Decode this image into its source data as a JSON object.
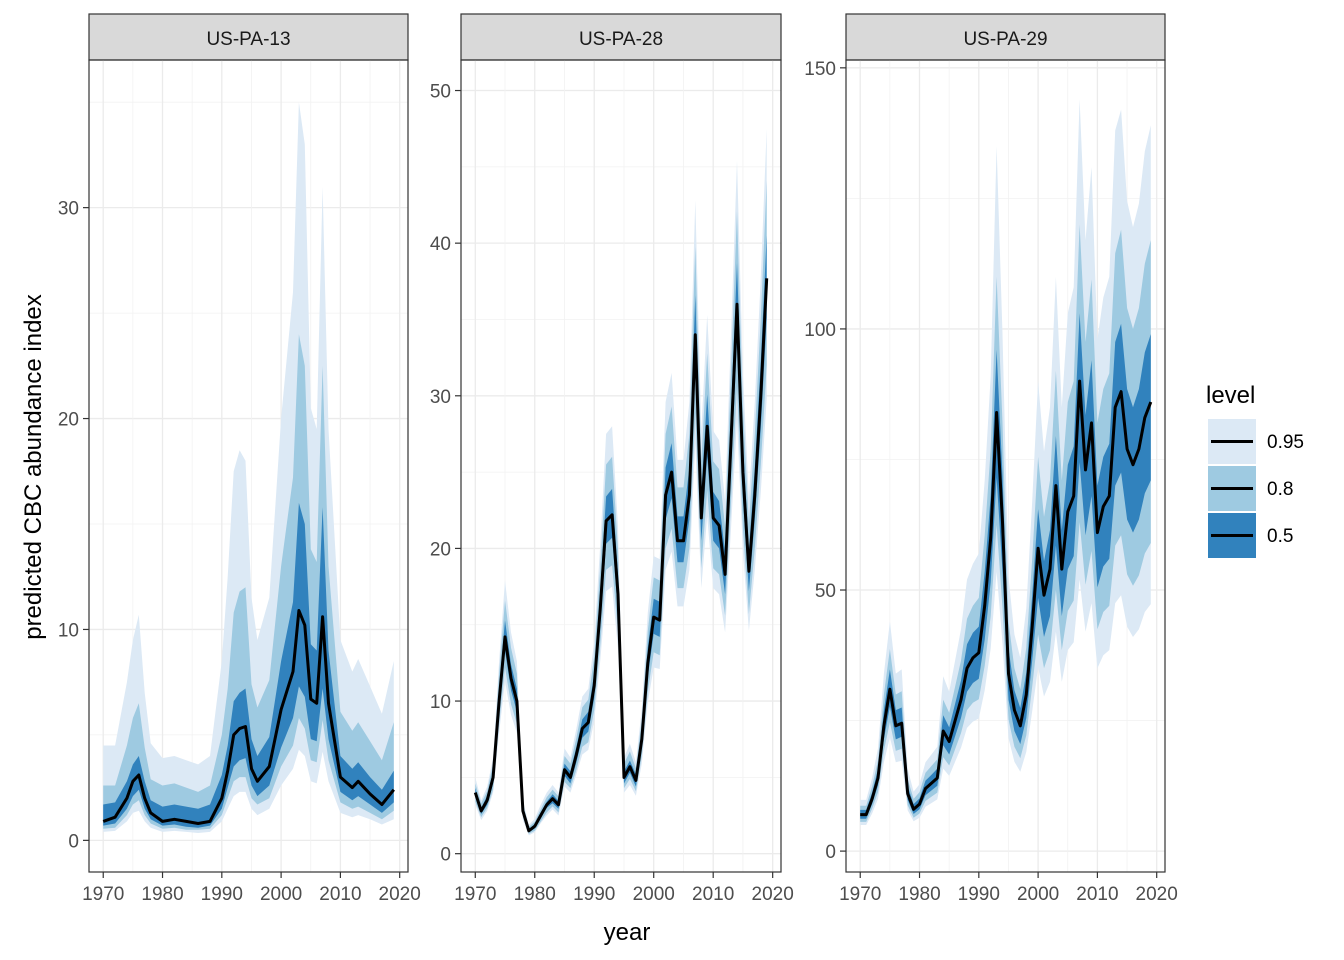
{
  "chart_data": {
    "type": "area",
    "xlabel": "year",
    "ylabel": "predicted CBC abundance index",
    "x_ticks": [
      1970,
      1980,
      1990,
      2000,
      2010,
      2020
    ],
    "legend": {
      "title": "level",
      "placement": "right",
      "entries": [
        "0.95",
        "0.8",
        "0.5"
      ]
    },
    "colors": {
      "band_95": "#dce9f5",
      "band_80": "#9ecae1",
      "band_50": "#3182bd",
      "line": "#000000",
      "strip_bg": "#d9d9d9",
      "grid": "#ebebeb"
    },
    "grid": true,
    "panels": [
      {
        "label": "US-PA-13",
        "ylim": [
          -1.5,
          37
        ],
        "y_ticks": [
          0,
          10,
          20,
          30
        ],
        "x": [
          1970,
          1972,
          1974,
          1975,
          1976,
          1977,
          1978,
          1980,
          1982,
          1984,
          1986,
          1988,
          1990,
          1991,
          1992,
          1993,
          1994,
          1995,
          1996,
          1998,
          2000,
          2002,
          2003,
          2004,
          2005,
          2006,
          2007,
          2008,
          2010,
          2012,
          2013,
          2015,
          2017,
          2019
        ],
        "median": [
          0.9,
          1.1,
          2.0,
          2.8,
          3.1,
          2.0,
          1.3,
          0.9,
          1.0,
          0.9,
          0.8,
          0.9,
          2.0,
          3.3,
          5.0,
          5.3,
          5.4,
          3.4,
          2.8,
          3.5,
          6.2,
          8.0,
          10.9,
          10.2,
          6.7,
          6.5,
          10.6,
          6.5,
          3.0,
          2.5,
          2.8,
          2.2,
          1.7,
          2.4
        ],
        "lo50": [
          0.7,
          0.8,
          1.5,
          2.1,
          2.4,
          1.5,
          1.0,
          0.7,
          0.75,
          0.65,
          0.6,
          0.7,
          1.5,
          2.5,
          3.5,
          3.8,
          3.9,
          2.6,
          2.1,
          2.6,
          4.4,
          5.8,
          7.3,
          6.8,
          4.8,
          4.7,
          7.2,
          4.8,
          2.3,
          1.9,
          2.1,
          1.7,
          1.3,
          1.8
        ],
        "hi50": [
          1.7,
          1.8,
          2.8,
          3.6,
          4.0,
          2.8,
          1.9,
          1.6,
          1.7,
          1.6,
          1.5,
          1.7,
          3.1,
          4.5,
          6.6,
          7.0,
          7.2,
          4.8,
          4.0,
          4.9,
          8.5,
          11.3,
          16.0,
          15.0,
          9.3,
          9.0,
          15.8,
          9.0,
          4.0,
          3.4,
          3.7,
          3.0,
          2.4,
          3.3
        ],
        "lo80": [
          0.55,
          0.6,
          1.2,
          1.7,
          1.9,
          1.2,
          0.8,
          0.55,
          0.6,
          0.5,
          0.5,
          0.55,
          1.2,
          2.0,
          2.8,
          3.0,
          3.0,
          2.0,
          1.7,
          2.0,
          3.5,
          4.5,
          5.8,
          5.3,
          3.8,
          3.7,
          5.7,
          3.8,
          1.8,
          1.5,
          1.6,
          1.3,
          1.0,
          1.4
        ],
        "hi80": [
          2.6,
          2.6,
          4.5,
          5.8,
          6.5,
          4.4,
          2.9,
          2.6,
          2.7,
          2.5,
          2.3,
          2.6,
          5.0,
          7.2,
          10.8,
          11.8,
          12.0,
          7.4,
          6.3,
          7.6,
          13.0,
          17.2,
          24.0,
          22.5,
          13.8,
          13.2,
          22.5,
          13.0,
          6.1,
          5.2,
          5.6,
          4.7,
          3.8,
          5.6
        ],
        "lo95": [
          0.4,
          0.45,
          0.9,
          1.3,
          1.4,
          0.9,
          0.6,
          0.4,
          0.45,
          0.4,
          0.35,
          0.4,
          0.9,
          1.5,
          2.1,
          2.3,
          2.3,
          1.5,
          1.2,
          1.5,
          2.6,
          3.4,
          4.3,
          4.0,
          2.8,
          2.7,
          4.2,
          2.8,
          1.3,
          1.1,
          1.2,
          1.0,
          0.75,
          1.0
        ],
        "hi95": [
          4.5,
          4.5,
          7.5,
          9.5,
          10.7,
          7.0,
          4.6,
          3.9,
          4.0,
          3.8,
          3.6,
          4.0,
          8.5,
          12.5,
          17.5,
          18.5,
          18.0,
          11.5,
          9.5,
          11.5,
          20.0,
          26.0,
          35.0,
          33.0,
          20.5,
          19.5,
          31.0,
          19.5,
          9.5,
          8.0,
          8.6,
          7.3,
          6.0,
          8.5
        ]
      },
      {
        "label": "US-PA-28",
        "ylim": [
          -1.2,
          52
        ],
        "y_ticks": [
          0,
          10,
          20,
          30,
          40,
          50
        ],
        "x": [
          1970,
          1971,
          1972,
          1973,
          1974,
          1975,
          1976,
          1977,
          1978,
          1979,
          1980,
          1981,
          1982,
          1983,
          1984,
          1985,
          1986,
          1987,
          1988,
          1989,
          1990,
          1991,
          1992,
          1993,
          1994,
          1995,
          1996,
          1997,
          1998,
          1999,
          2000,
          2001,
          2002,
          2003,
          2004,
          2005,
          2006,
          2007,
          2008,
          2009,
          2010,
          2011,
          2012,
          2013,
          2014,
          2015,
          2016,
          2017,
          2018,
          2019
        ],
        "median": [
          4.0,
          2.8,
          3.5,
          5.0,
          10.0,
          14.2,
          11.5,
          10.0,
          2.8,
          1.5,
          1.8,
          2.5,
          3.2,
          3.6,
          3.2,
          5.5,
          5.0,
          6.5,
          8.2,
          8.6,
          11.0,
          16.0,
          21.8,
          22.2,
          17.0,
          5.0,
          5.7,
          4.8,
          7.5,
          12.5,
          15.5,
          15.3,
          23.5,
          25.0,
          20.5,
          20.5,
          23.5,
          34.0,
          22.0,
          28.0,
          22.0,
          21.5,
          18.3,
          27.0,
          36.0,
          25.0,
          18.5,
          23.5,
          30.0,
          37.7
        ],
        "lo50": [
          3.7,
          2.6,
          3.2,
          4.6,
          9.3,
          13.3,
          10.7,
          9.3,
          2.6,
          1.4,
          1.65,
          2.3,
          3.0,
          3.3,
          2.95,
          5.1,
          4.6,
          6.0,
          7.6,
          8.0,
          10.2,
          14.9,
          20.3,
          20.7,
          15.8,
          4.6,
          5.3,
          4.4,
          7.0,
          11.6,
          14.4,
          14.2,
          21.9,
          23.3,
          19.1,
          19.1,
          21.9,
          31.6,
          20.5,
          26.0,
          20.5,
          20.0,
          17.0,
          25.1,
          33.5,
          23.3,
          17.2,
          21.9,
          27.9,
          35.1
        ],
        "hi50": [
          4.3,
          3.0,
          3.8,
          5.4,
          10.8,
          15.3,
          12.4,
          10.8,
          3.0,
          1.6,
          1.95,
          2.7,
          3.4,
          3.9,
          3.45,
          5.9,
          5.4,
          7.0,
          8.8,
          9.3,
          11.8,
          17.2,
          23.4,
          23.9,
          18.3,
          5.4,
          6.1,
          5.2,
          8.1,
          13.5,
          16.7,
          16.5,
          25.3,
          26.9,
          22.1,
          22.1,
          25.3,
          36.6,
          23.7,
          30.1,
          23.7,
          23.1,
          19.7,
          29.0,
          38.7,
          26.9,
          19.9,
          25.3,
          32.3,
          40.5
        ],
        "lo80": [
          3.4,
          2.4,
          3.0,
          4.2,
          8.5,
          12.2,
          9.8,
          8.5,
          2.4,
          1.3,
          1.5,
          2.1,
          2.7,
          3.1,
          2.7,
          4.7,
          4.3,
          5.5,
          7.0,
          7.3,
          9.4,
          13.6,
          18.6,
          18.9,
          14.5,
          4.3,
          4.9,
          4.1,
          6.4,
          10.6,
          13.2,
          13.0,
          20.0,
          21.3,
          17.4,
          17.4,
          20.0,
          28.9,
          18.7,
          23.8,
          18.7,
          18.3,
          15.6,
          23.0,
          30.6,
          21.3,
          15.7,
          20.0,
          25.5,
          32.0
        ],
        "hi80": [
          4.6,
          3.3,
          4.1,
          5.9,
          11.8,
          16.6,
          13.5,
          11.8,
          3.3,
          1.75,
          2.1,
          2.9,
          3.7,
          4.2,
          3.75,
          6.4,
          5.9,
          7.6,
          9.6,
          10.1,
          12.9,
          18.7,
          25.5,
          26.0,
          19.9,
          5.9,
          6.7,
          5.6,
          8.8,
          14.6,
          18.1,
          17.9,
          27.5,
          29.3,
          24.0,
          24.0,
          27.5,
          39.8,
          25.7,
          32.8,
          25.7,
          25.2,
          21.4,
          31.6,
          42.1,
          29.3,
          21.6,
          27.5,
          35.1,
          44.1
        ],
        "lo95": [
          3.2,
          2.2,
          2.8,
          4.0,
          7.9,
          11.3,
          9.1,
          7.9,
          2.2,
          1.2,
          1.4,
          2.0,
          2.5,
          2.9,
          2.5,
          4.4,
          4.0,
          5.2,
          6.5,
          6.8,
          8.7,
          12.6,
          17.2,
          17.5,
          13.4,
          4.0,
          4.5,
          3.8,
          5.9,
          9.9,
          12.2,
          12.1,
          18.6,
          19.8,
          16.2,
          16.2,
          18.6,
          26.9,
          17.4,
          22.1,
          17.4,
          17.0,
          14.5,
          21.3,
          28.4,
          19.8,
          14.6,
          18.6,
          23.7,
          29.8
        ],
        "hi95": [
          5.0,
          3.5,
          4.4,
          6.3,
          12.6,
          17.9,
          14.5,
          12.6,
          3.5,
          1.9,
          2.3,
          3.2,
          4.0,
          4.5,
          4.0,
          6.9,
          6.3,
          8.2,
          10.3,
          10.8,
          13.9,
          20.2,
          27.5,
          28.0,
          21.4,
          6.3,
          7.2,
          6.0,
          9.5,
          15.8,
          19.5,
          19.3,
          29.6,
          31.5,
          25.8,
          25.8,
          29.6,
          42.8,
          27.7,
          35.3,
          27.7,
          27.1,
          23.1,
          34.0,
          45.4,
          31.5,
          23.3,
          29.6,
          37.8,
          47.5
        ]
      },
      {
        "label": "US-PA-29",
        "ylim": [
          -4,
          151.5
        ],
        "y_ticks": [
          0,
          50,
          100,
          150
        ],
        "x": [
          1970,
          1971,
          1972,
          1973,
          1974,
          1975,
          1976,
          1977,
          1978,
          1979,
          1980,
          1981,
          1982,
          1983,
          1984,
          1985,
          1986,
          1987,
          1988,
          1989,
          1990,
          1991,
          1992,
          1993,
          1994,
          1995,
          1996,
          1997,
          1998,
          1999,
          2000,
          2001,
          2002,
          2003,
          2004,
          2005,
          2006,
          2007,
          2008,
          2009,
          2010,
          2011,
          2012,
          2013,
          2014,
          2015,
          2016,
          2017,
          2018,
          2019
        ],
        "median": [
          7,
          7,
          10,
          14,
          24,
          31,
          24,
          24.5,
          11,
          8,
          9,
          12,
          13,
          14,
          23,
          21,
          25,
          29,
          35,
          37,
          38,
          47,
          60,
          84,
          63,
          34,
          27,
          24,
          30,
          43,
          58,
          49,
          54,
          70,
          54,
          65,
          68,
          90,
          73,
          82,
          61,
          66,
          68,
          85,
          88,
          77,
          74,
          77,
          83,
          86
        ],
        "lo50": [
          6.2,
          6.2,
          9.0,
          12.6,
          21.4,
          27.7,
          21.4,
          21.9,
          9.8,
          7.1,
          8.0,
          10.7,
          11.6,
          12.5,
          20.3,
          18.5,
          22.0,
          25.5,
          30.5,
          32.2,
          33.0,
          40.5,
          51.5,
          71.5,
          53.5,
          29.0,
          23.0,
          20.5,
          25.5,
          36.5,
          48.5,
          41.0,
          45.0,
          58.5,
          45.0,
          54.0,
          56.5,
          74.5,
          60.5,
          68.0,
          50.5,
          54.5,
          56.0,
          70.0,
          72.5,
          63.5,
          61.0,
          63.5,
          68.5,
          71.0
        ],
        "hi50": [
          7.9,
          7.9,
          11.2,
          15.7,
          27.0,
          34.8,
          27.0,
          27.5,
          12.4,
          9.0,
          10.1,
          13.5,
          14.6,
          15.8,
          26.0,
          23.7,
          28.2,
          32.7,
          39.6,
          41.8,
          43.0,
          53.5,
          68.0,
          96.0,
          72.0,
          38.8,
          30.8,
          27.4,
          34.2,
          49.0,
          65.5,
          55.5,
          61.5,
          79.5,
          61.5,
          74.0,
          77.5,
          103.0,
          83.5,
          94.0,
          70.0,
          75.5,
          78.0,
          97.5,
          101.0,
          88.5,
          85.0,
          88.5,
          95.5,
          99.0
        ],
        "lo80": [
          5.6,
          5.6,
          8.1,
          11.3,
          19.2,
          24.7,
          19.2,
          19.6,
          8.8,
          6.4,
          7.2,
          9.6,
          10.4,
          11.2,
          18.0,
          16.4,
          19.5,
          22.6,
          27.0,
          28.4,
          29.1,
          35.5,
          45.0,
          62.5,
          46.5,
          25.2,
          20.0,
          17.8,
          22.2,
          31.5,
          41.5,
          35.0,
          38.5,
          50.0,
          38.5,
          46.0,
          48.0,
          63.0,
          51.0,
          57.5,
          42.5,
          45.8,
          47.0,
          58.5,
          60.5,
          53.0,
          50.8,
          52.8,
          57.0,
          59.0
        ],
        "hi80": [
          8.7,
          8.7,
          12.4,
          17.4,
          30.0,
          38.7,
          30.0,
          30.6,
          13.8,
          10.0,
          11.3,
          15.0,
          16.3,
          17.6,
          29.0,
          26.5,
          31.5,
          36.5,
          44.5,
          47.0,
          48.5,
          60.5,
          77.0,
          110.0,
          82.0,
          44.0,
          35.0,
          31.0,
          39.0,
          56.0,
          75.5,
          64.0,
          71.0,
          92.0,
          71.0,
          86.0,
          90.0,
          120.0,
          97.5,
          109.5,
          82.0,
          88.5,
          91.5,
          114.5,
          119.0,
          104.0,
          100.0,
          104.0,
          112.5,
          117.0
        ],
        "lo95": [
          5.0,
          5.0,
          7.2,
          10.0,
          17.0,
          21.8,
          17.0,
          17.3,
          7.8,
          5.7,
          6.4,
          8.5,
          9.2,
          9.9,
          15.8,
          14.4,
          17.1,
          19.8,
          23.6,
          24.8,
          25.4,
          30.8,
          38.8,
          53.5,
          39.8,
          21.6,
          17.1,
          15.2,
          19.0,
          26.8,
          35.2,
          29.6,
          32.4,
          42.0,
          32.4,
          38.5,
          40.0,
          52.0,
          42.0,
          47.5,
          35.0,
          37.5,
          38.5,
          47.5,
          49.0,
          43.0,
          41.0,
          42.5,
          45.8,
          47.3
        ],
        "hi95": [
          9.8,
          9.8,
          14.0,
          19.7,
          34.0,
          44.0,
          34.0,
          34.8,
          15.7,
          11.4,
          12.8,
          17.0,
          18.5,
          20.0,
          33.5,
          30.5,
          36.5,
          42.5,
          52.0,
          55.0,
          57.0,
          71.0,
          91.0,
          135.0,
          99.0,
          52.5,
          41.5,
          37.0,
          46.5,
          67.0,
          90.0,
          76.5,
          85.0,
          110.0,
          85.0,
          103.0,
          108.0,
          144.0,
          117.0,
          131.0,
          98.0,
          106.0,
          110.0,
          138.0,
          142.0,
          124.5,
          119.5,
          124.0,
          134.0,
          139.0
        ]
      }
    ]
  }
}
